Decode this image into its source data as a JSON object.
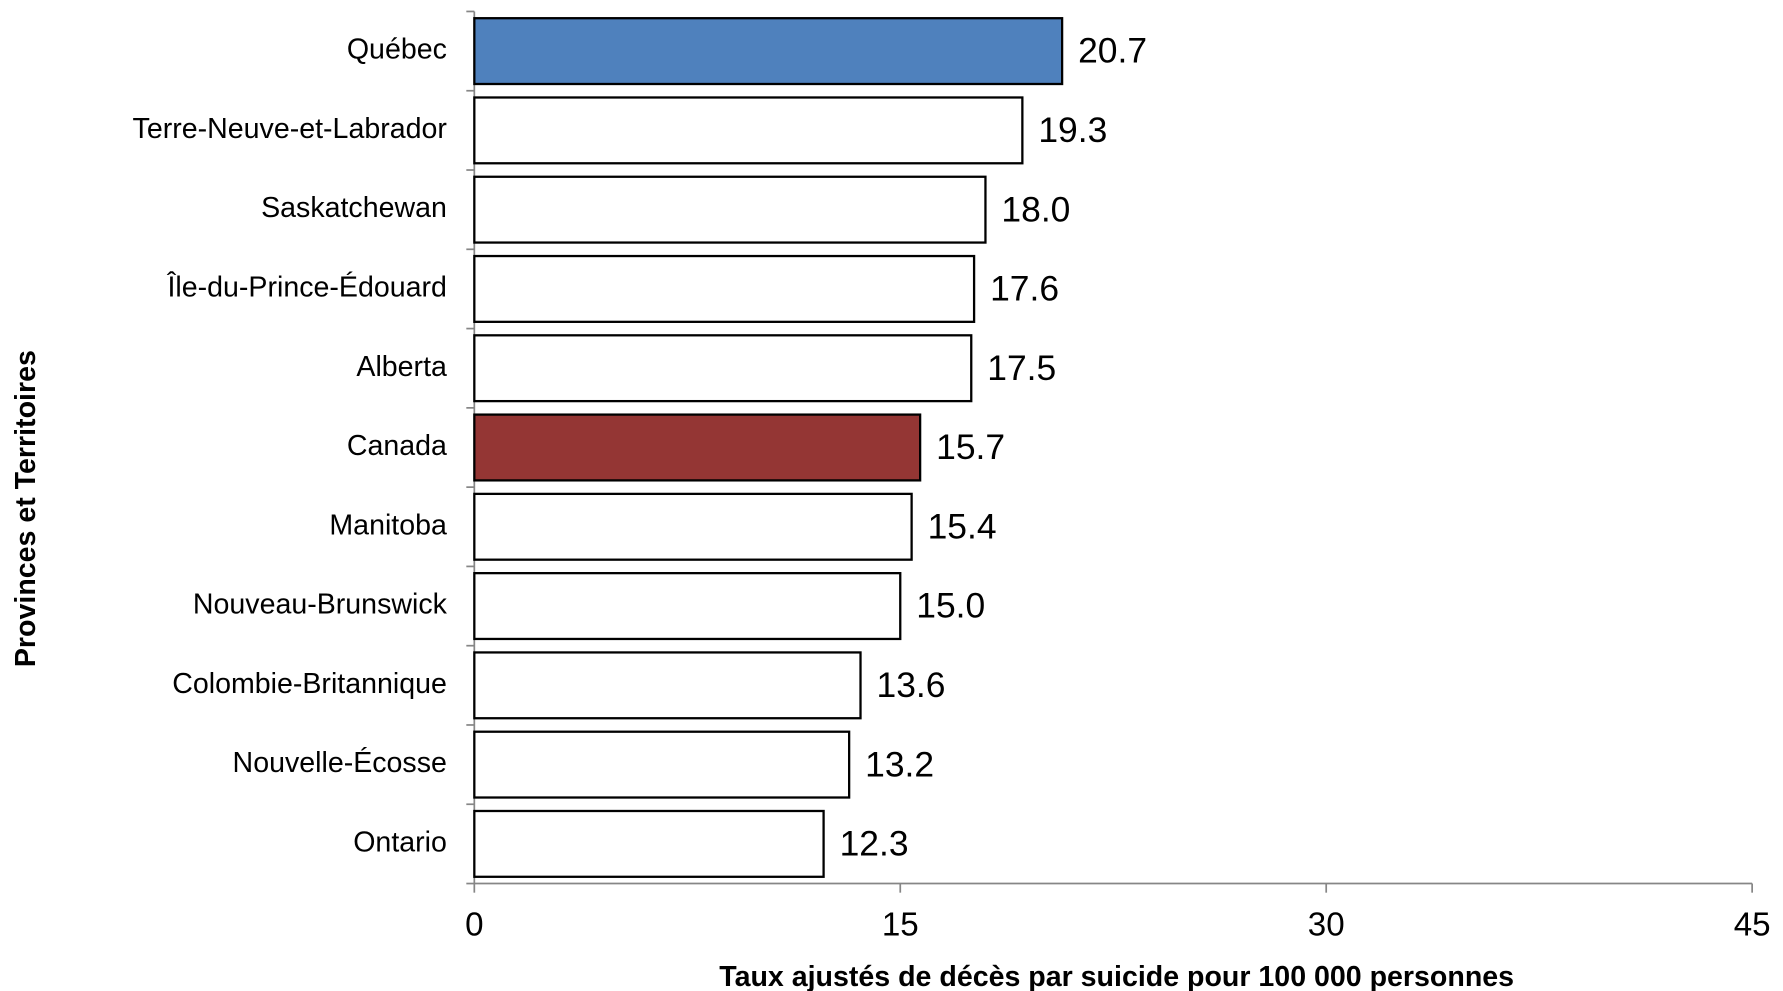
{
  "chart_data": {
    "type": "bar",
    "orientation": "horizontal",
    "x_label": "Taux ajustés de décès par suicide pour 100 000 personnes",
    "y_label": "Provinces et Territoires",
    "categories": [
      "Québec",
      "Terre-Neuve-et-Labrador",
      "Saskatchewan",
      "Île-du-Prince-Édouard",
      "Alberta",
      "Canada",
      "Manitoba",
      "Nouveau-Brunswick",
      "Colombie-Britannique",
      "Nouvelle-Écosse",
      "Ontario"
    ],
    "values": [
      20.7,
      19.3,
      18.0,
      17.6,
      17.5,
      15.7,
      15.4,
      15.0,
      13.6,
      13.2,
      12.3
    ],
    "value_labels": [
      "20.7",
      "19.3",
      "18.0",
      "17.6",
      "17.5",
      "15.7",
      "15.4",
      "15.0",
      "13.6",
      "13.2",
      "12.3"
    ],
    "colors": [
      "#4f81bd",
      "#ffffff",
      "#ffffff",
      "#ffffff",
      "#ffffff",
      "#943634",
      "#ffffff",
      "#ffffff",
      "#ffffff",
      "#ffffff",
      "#ffffff"
    ],
    "xlim": [
      0,
      45
    ],
    "xticks": [
      0,
      15,
      30,
      45
    ],
    "grid": false
  }
}
